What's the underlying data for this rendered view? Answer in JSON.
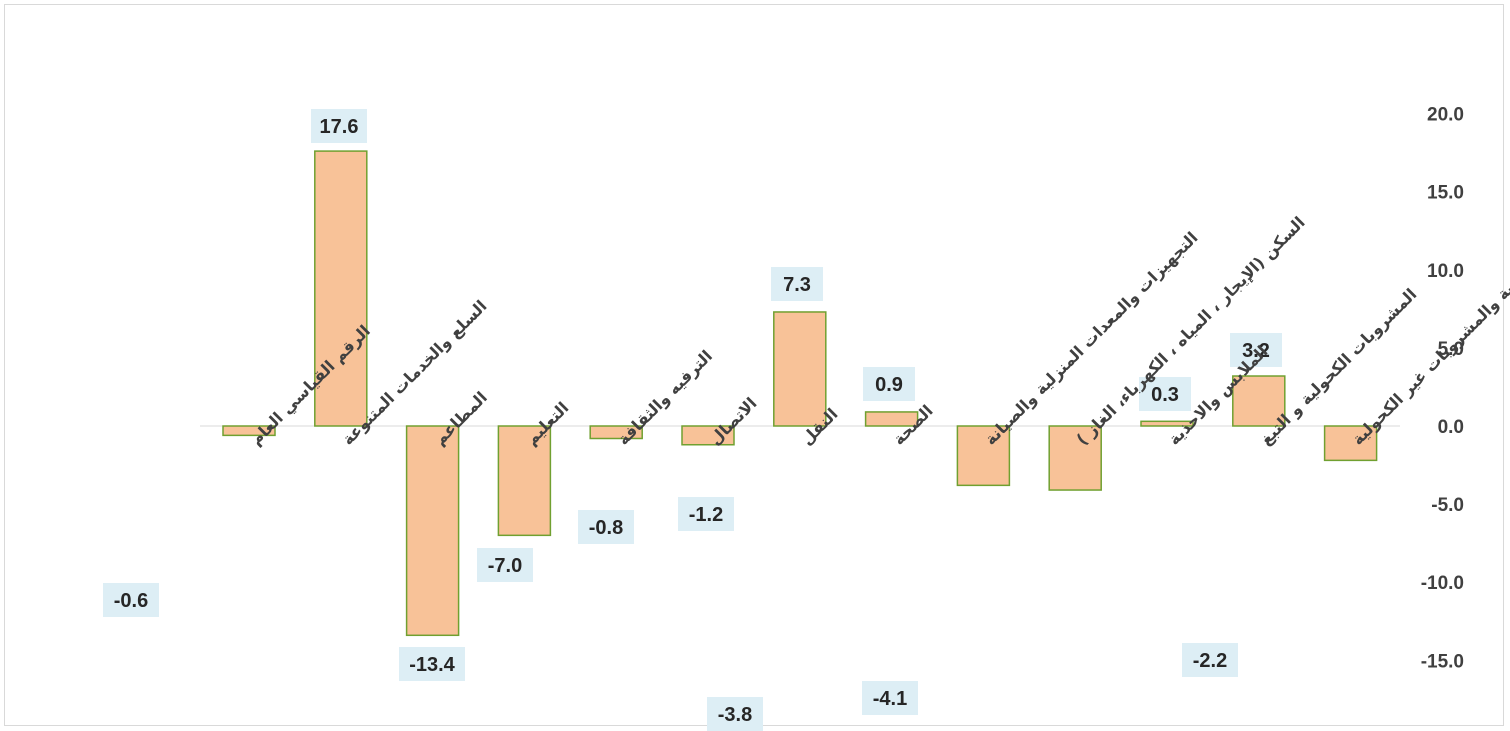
{
  "chart_data": {
    "type": "bar",
    "title": "",
    "xlabel": "",
    "ylabel": "",
    "ylim": [
      -15,
      20
    ],
    "yticks": [
      "20.0",
      "15.0",
      "10.0",
      "5.0",
      "0.0",
      "-5.0",
      "-10.0",
      "-15.0"
    ],
    "grid": false,
    "legend": "none",
    "axis_position": "right",
    "bar_color": "#f8c298",
    "bar_border_color": "#70a030",
    "label_bg_color": "#ddeef5",
    "categories": [
      "الرقم القياسي العام",
      "السلع والخدمات المتنوعة",
      "المطاعم",
      "التعليم",
      "الترفيه والثقافة",
      "الاتصال",
      "النقل",
      "الصحة",
      "التجهيزات والمعدات المنزلية والصيانة",
      "السكن (الإيجار ، المياه ، الكهرباء، الغاز )",
      "الملابس والاحذية",
      "المشروبات الكحولية و التبغ",
      "الاغذية والمشروبات غير الكحولية"
    ],
    "values": [
      -0.6,
      17.6,
      -13.4,
      -7.0,
      -0.8,
      -1.2,
      7.3,
      0.9,
      -3.8,
      -4.1,
      0.3,
      3.2,
      -2.2
    ],
    "data_labels": [
      "-0.6",
      "17.6",
      "-13.4",
      "-7.0",
      "-0.8",
      "-1.2",
      "7.3",
      "0.9",
      "-3.8",
      "-4.1",
      "0.3",
      "3.2",
      "-2.2"
    ]
  }
}
